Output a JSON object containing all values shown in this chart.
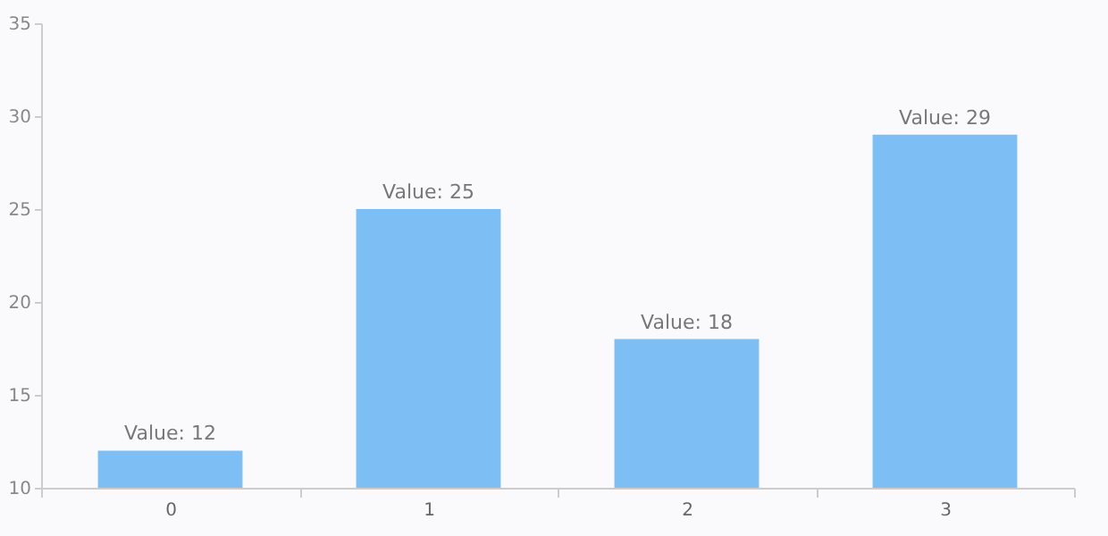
{
  "chart_data": {
    "type": "bar",
    "categories": [
      "0",
      "1",
      "2",
      "3"
    ],
    "values": [
      12,
      25,
      18,
      29
    ],
    "value_labels": [
      "Value: 12",
      "Value: 25",
      "Value: 18",
      "Value: 29"
    ],
    "color": "#7dbff5",
    "ylim": [
      10,
      35
    ],
    "yticks": [
      10,
      15,
      20,
      25,
      30,
      35
    ],
    "grid": false
  }
}
